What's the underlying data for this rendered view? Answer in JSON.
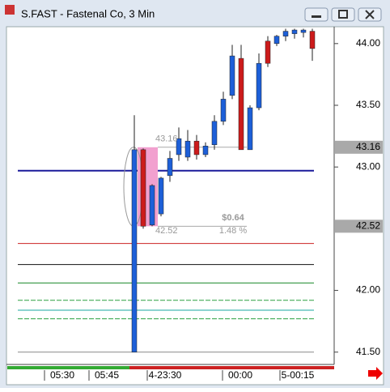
{
  "header": {
    "title": "S.FAST - Fastenal Co, 3 Min"
  },
  "chart_data": {
    "type": "candlestick",
    "ylim": [
      41.4,
      44.13
    ],
    "yticks": [
      {
        "value": 44,
        "label": "44.00"
      },
      {
        "value": 43.5,
        "label": "43.50"
      },
      {
        "value": 43,
        "label": "43.00"
      },
      {
        "value": 42,
        "label": "42.00"
      },
      {
        "value": 41.5,
        "label": "41.50"
      }
    ],
    "time_labels": [
      "05:30",
      "05:45",
      "4-23:30",
      "00:00",
      "5-00:15"
    ],
    "up_color": "#1d5fd8",
    "down_color": "#cc1b1b",
    "candles": [
      {
        "open": 41.5,
        "high": 43.42,
        "low": 41.5,
        "close": 43.14
      },
      {
        "open": 43.14,
        "high": 43.15,
        "low": 42.5,
        "close": 42.52
      },
      {
        "open": 42.53,
        "high": 42.86,
        "low": 42.52,
        "close": 42.85
      },
      {
        "open": 42.62,
        "high": 42.92,
        "low": 42.6,
        "close": 42.91
      },
      {
        "open": 42.93,
        "high": 43.13,
        "low": 42.88,
        "close": 43.07
      },
      {
        "open": 43.1,
        "high": 43.32,
        "low": 43.05,
        "close": 43.23
      },
      {
        "open": 43.08,
        "high": 43.3,
        "low": 43.05,
        "close": 43.21
      },
      {
        "open": 43.21,
        "high": 43.26,
        "low": 43.06,
        "close": 43.1
      },
      {
        "open": 43.1,
        "high": 43.2,
        "low": 43.08,
        "close": 43.17
      },
      {
        "open": 43.18,
        "high": 43.42,
        "low": 43.14,
        "close": 43.37
      },
      {
        "open": 43.37,
        "high": 43.61,
        "low": 43.34,
        "close": 43.55
      },
      {
        "open": 43.58,
        "high": 43.99,
        "low": 43.55,
        "close": 43.9
      },
      {
        "open": 43.88,
        "high": 43.99,
        "low": 43.14,
        "close": 43.14
      },
      {
        "open": 43.14,
        "high": 43.5,
        "low": 43.14,
        "close": 43.48
      },
      {
        "open": 43.48,
        "high": 43.92,
        "low": 43.46,
        "close": 43.84
      },
      {
        "open": 44.02,
        "high": 44.06,
        "low": 43.81,
        "close": 43.84
      },
      {
        "open": 44.0,
        "high": 44.07,
        "low": 43.98,
        "close": 44.06
      },
      {
        "open": 44.06,
        "high": 44.12,
        "low": 44.02,
        "close": 44.1
      },
      {
        "open": 44.08,
        "high": 44.12,
        "low": 44.04,
        "close": 44.11
      },
      {
        "open": 44.09,
        "high": 44.12,
        "low": 44.05,
        "close": 44.11
      },
      {
        "open": 44.1,
        "high": 44.12,
        "low": 43.86,
        "close": 43.96
      }
    ],
    "levels": [
      {
        "value": 42.97,
        "color": "#1a1a9a"
      },
      {
        "value": 42.38,
        "color": "#cc2222"
      },
      {
        "value": 42.21,
        "color": "#111111"
      },
      {
        "value": 42.06,
        "color": "#1a8a2a"
      },
      {
        "value": 41.92,
        "color": "#2aa040",
        "dash": true
      },
      {
        "value": 41.84,
        "color": "#19a7a0"
      },
      {
        "value": 41.77,
        "color": "#2aa040",
        "dash": true
      },
      {
        "value": 41.5,
        "color": "#888888"
      }
    ],
    "price_markers": [
      {
        "value": 43.16,
        "label": "43.16"
      },
      {
        "value": 42.52,
        "label": "42.52"
      }
    ],
    "measure": {
      "high": 43.16,
      "high_label": "43.16",
      "low": 42.52,
      "low_label": "42.52",
      "change": "$0.64",
      "percent": "1.48 %"
    }
  }
}
